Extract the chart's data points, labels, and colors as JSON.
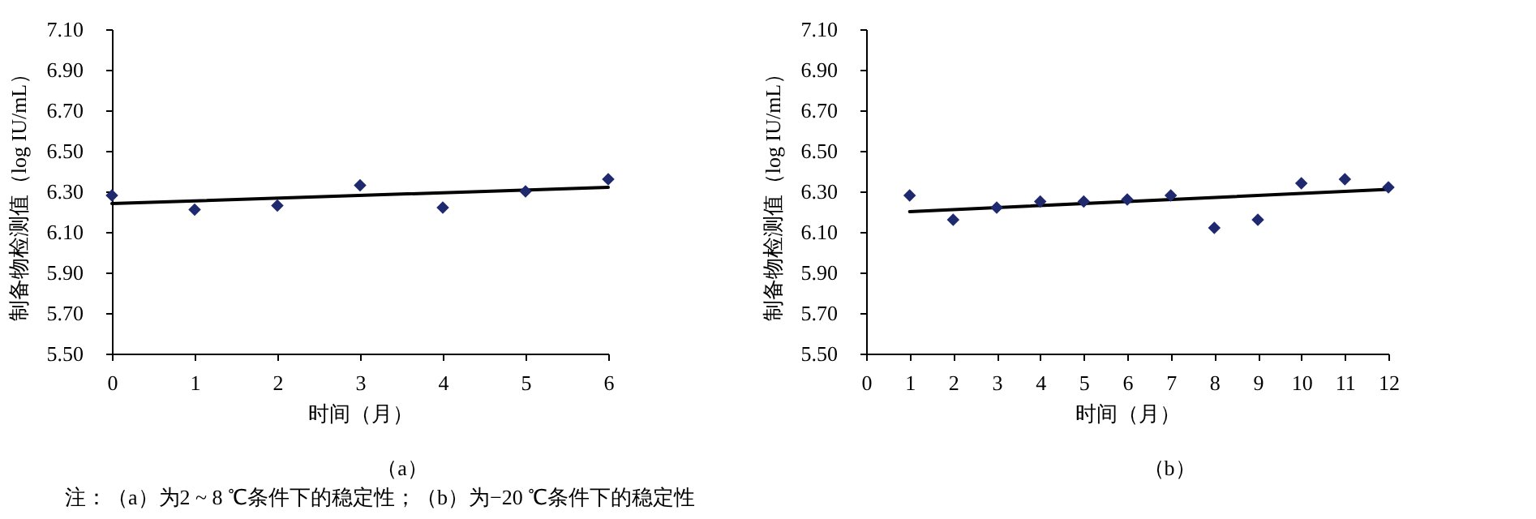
{
  "chart_data": [
    {
      "type": "scatter",
      "xlabel": "时间（月）",
      "ylabel": "制备物检测值（log IU/mL）",
      "annotations": [
        "（a）",
        "注：（a）为2 ~ 8 ℃条件下的稳定性；（b）为−20 ℃条件下的稳定性"
      ],
      "xlim": [
        0,
        6
      ],
      "xticks": [
        0,
        1,
        2,
        3,
        4,
        5,
        6
      ],
      "ylim": [
        5.5,
        7.1
      ],
      "yticks": [
        {
          "value": 5.5,
          "label": "5.50"
        },
        {
          "value": 5.7,
          "label": "5.70"
        },
        {
          "value": 5.9,
          "label": "5.90"
        },
        {
          "value": 6.1,
          "label": "6.10"
        },
        {
          "value": 6.3,
          "label": "6.30"
        },
        {
          "value": 6.5,
          "label": "6.50"
        },
        {
          "value": 6.7,
          "label": "6.70"
        },
        {
          "value": 6.9,
          "label": "6.90"
        },
        {
          "value": 7.1,
          "label": "7.10"
        }
      ],
      "grid": false,
      "series": [
        {
          "color": "#1f2a6e",
          "marker": "diamond",
          "x": [
            0,
            1,
            2,
            3,
            4,
            5,
            6
          ],
          "values": [
            6.28,
            6.21,
            6.23,
            6.33,
            6.22,
            6.3,
            6.36
          ]
        },
        {
          "type": "line",
          "color": "#000000",
          "marker": "none",
          "x": [
            0,
            6
          ],
          "values": [
            6.24,
            6.32
          ]
        }
      ]
    },
    {
      "type": "scatter",
      "xlabel": "时间（月）",
      "ylabel": "制备物检测值（log IU/mL）",
      "annotations": [
        "（b）"
      ],
      "xlim": [
        0,
        12
      ],
      "xticks": [
        0,
        1,
        2,
        3,
        4,
        5,
        6,
        7,
        8,
        9,
        10,
        11,
        12
      ],
      "ylim": [
        5.5,
        7.1
      ],
      "yticks": [
        {
          "value": 5.5,
          "label": "5.50"
        },
        {
          "value": 5.7,
          "label": "5.70"
        },
        {
          "value": 5.9,
          "label": "5.90"
        },
        {
          "value": 6.1,
          "label": "6.10"
        },
        {
          "value": 6.3,
          "label": "6.30"
        },
        {
          "value": 6.5,
          "label": "6.50"
        },
        {
          "value": 6.7,
          "label": "6.70"
        },
        {
          "value": 6.9,
          "label": "6.90"
        },
        {
          "value": 7.1,
          "label": "7.10"
        }
      ],
      "grid": false,
      "series": [
        {
          "color": "#1f2a6e",
          "marker": "diamond",
          "x": [
            1,
            2,
            3,
            4,
            5,
            6,
            7,
            8,
            9,
            10,
            11,
            12
          ],
          "values": [
            6.28,
            6.16,
            6.22,
            6.25,
            6.25,
            6.26,
            6.28,
            6.12,
            6.16,
            6.34,
            6.36,
            6.32
          ]
        },
        {
          "type": "line",
          "color": "#000000",
          "marker": "none",
          "x": [
            1,
            12
          ],
          "values": [
            6.2,
            6.31
          ]
        }
      ]
    }
  ]
}
